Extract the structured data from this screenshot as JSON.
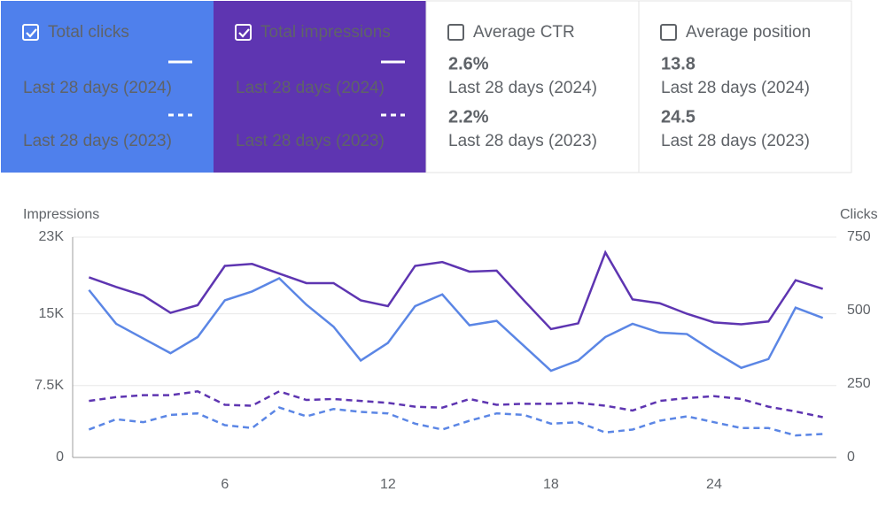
{
  "cards": [
    {
      "title": "Total clicks",
      "checked": true,
      "color": "#4f80ec"
    },
    {
      "title": "Total impressions",
      "checked": true,
      "color": "#5e35b1"
    },
    {
      "title": "Average CTR",
      "checked": false,
      "figures": [
        "2.6%",
        "2.2%"
      ]
    },
    {
      "title": "Average position",
      "checked": false,
      "figures": [
        "13.8",
        "24.5"
      ]
    }
  ],
  "chart_data": {
    "type": "line",
    "y_label": "Impressions",
    "y2_label": "Clicks",
    "x": [
      1,
      2,
      3,
      4,
      5,
      6,
      7,
      8,
      9,
      10,
      11,
      12,
      13,
      14,
      15,
      16,
      17,
      18,
      19,
      20,
      21,
      22,
      23,
      24,
      25,
      26,
      27,
      28
    ],
    "xlim": [
      0.4,
      28.5
    ],
    "xticks": [
      6,
      12,
      18,
      24
    ],
    "ylim": [
      0,
      23000
    ],
    "yticks": [
      {
        "value": 0,
        "label": "0"
      },
      {
        "value": 7500,
        "label": "7.5K"
      },
      {
        "value": 15000,
        "label": "15K"
      },
      {
        "value": 23000,
        "label": "23K"
      }
    ],
    "y2lim": [
      0,
      750
    ],
    "y2ticks": [
      0,
      250,
      500,
      750
    ],
    "grid": true,
    "series": [
      {
        "name": "Last 28 days (2024)",
        "color": "#5b86e5",
        "dashed": false,
        "axis": "y2",
        "values": [
          570,
          455,
          405,
          355,
          410,
          535,
          565,
          610,
          520,
          445,
          330,
          390,
          515,
          555,
          450,
          465,
          380,
          295,
          330,
          410,
          455,
          425,
          420,
          360,
          305,
          335,
          510,
          475
        ]
      },
      {
        "name": "Last 28 days (2023)",
        "color": "#5b86e5",
        "dashed": true,
        "axis": "y2",
        "values": [
          95,
          130,
          120,
          145,
          150,
          110,
          100,
          170,
          140,
          165,
          155,
          150,
          115,
          95,
          125,
          150,
          145,
          115,
          120,
          85,
          95,
          125,
          140,
          120,
          100,
          100,
          75,
          80
        ]
      },
      {
        "name": "Last 28 days (2024)",
        "color": "#5e35b1",
        "dashed": false,
        "values": [
          18800,
          17800,
          16900,
          15100,
          15900,
          20000,
          20200,
          19200,
          18200,
          18200,
          16400,
          15800,
          20000,
          20400,
          19400,
          19500,
          16400,
          13400,
          14000,
          21400,
          16500,
          16100,
          15000,
          14100,
          13900,
          14200,
          18500,
          17600
        ]
      },
      {
        "name": "Last 28 days (2023)",
        "color": "#5e35b1",
        "dashed": true,
        "values": [
          5900,
          6300,
          6500,
          6500,
          6900,
          5500,
          5400,
          6900,
          6000,
          6100,
          5900,
          5700,
          5300,
          5200,
          6100,
          5500,
          5600,
          5600,
          5700,
          5400,
          4900,
          5900,
          6200,
          6400,
          6100,
          5300,
          4800,
          4200
        ]
      }
    ]
  }
}
